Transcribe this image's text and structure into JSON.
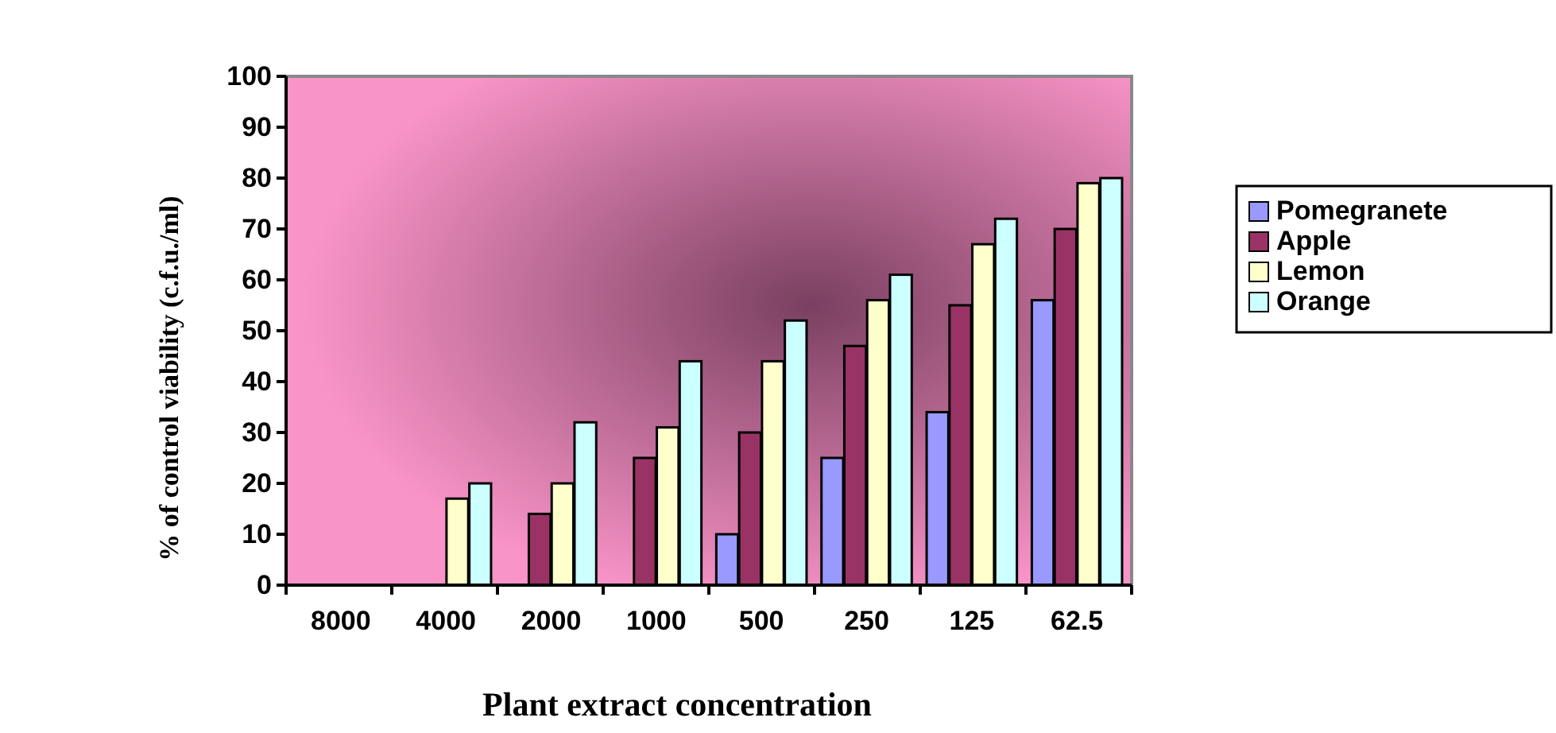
{
  "chart_data": {
    "type": "bar",
    "xlabel": "Plant extract concentration",
    "ylabel": "% of control viability (c.f.u./ml)",
    "categories": [
      "8000",
      "4000",
      "2000",
      "1000",
      "500",
      "250",
      "125",
      "62.5"
    ],
    "series": [
      {
        "name": "Pomegranete",
        "color": "#9999ff",
        "values": [
          0,
          0,
          0,
          0,
          10,
          25,
          34,
          56
        ]
      },
      {
        "name": "Apple",
        "color": "#993366",
        "values": [
          0,
          0,
          14,
          25,
          30,
          47,
          55,
          70
        ]
      },
      {
        "name": "Lemon",
        "color": "#ffffcc",
        "values": [
          0,
          17,
          20,
          31,
          44,
          56,
          67,
          79
        ]
      },
      {
        "name": "Orange",
        "color": "#ccffff",
        "values": [
          0,
          20,
          32,
          44,
          52,
          61,
          72,
          80
        ]
      }
    ],
    "ylim": [
      0,
      100
    ],
    "yticks": [
      0,
      10,
      20,
      30,
      40,
      50,
      60,
      70,
      80,
      90,
      100
    ],
    "grid": false,
    "legend": "right"
  }
}
